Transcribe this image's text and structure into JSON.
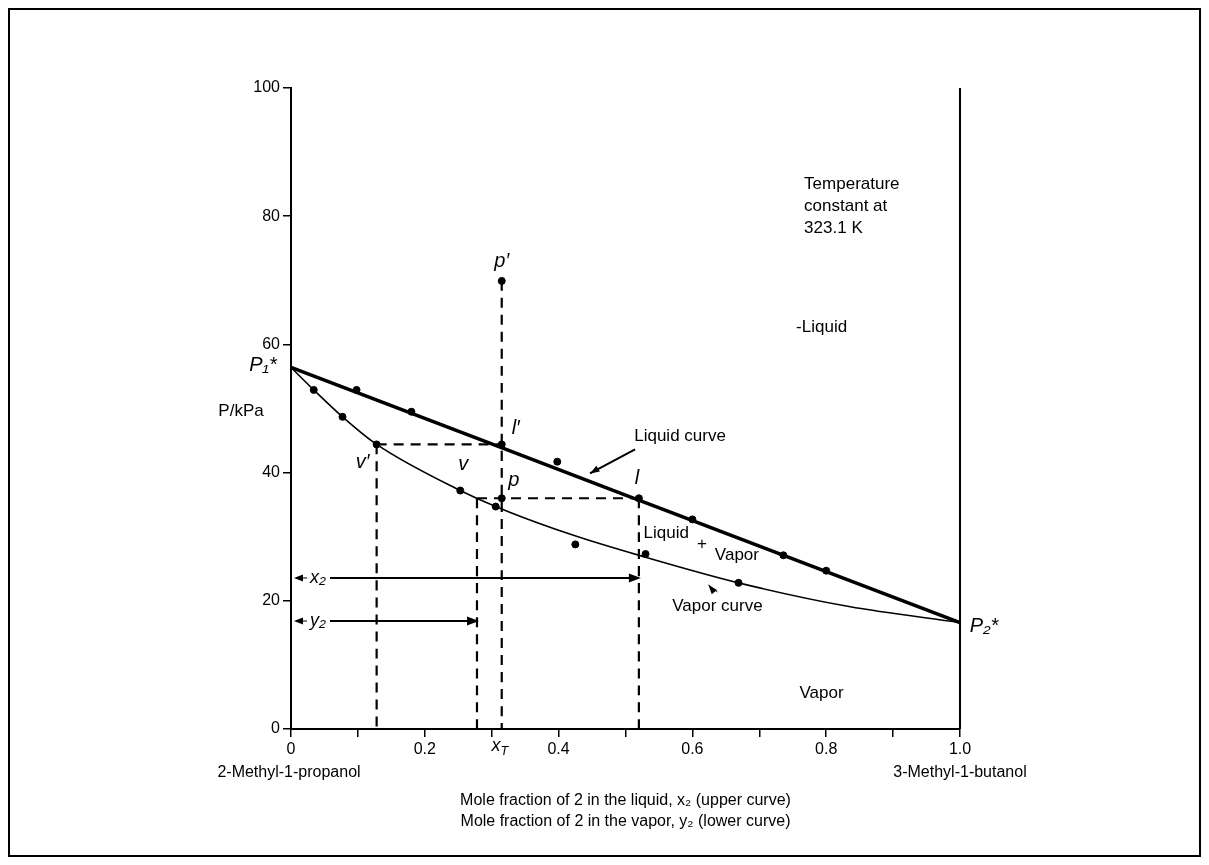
{
  "chart_data": {
    "type": "line",
    "xlabel": "Mole fraction of 2 in the liquid, x₂ (upper curve)\nMole fraction of 2 in the vapor, y₂ (lower curve)",
    "ylabel": "P/kPa",
    "xlim": [
      0,
      1
    ],
    "ylim": [
      0,
      100
    ],
    "xticks": [
      0,
      {
        "value": 0.1,
        "label": null
      },
      0.2,
      {
        "value": 0.3,
        "label": null
      },
      0.4,
      {
        "value": 0.5,
        "label": null
      },
      0.6,
      {
        "value": 0.7,
        "label": null
      },
      0.8,
      {
        "value": 0.9,
        "label": null
      },
      {
        "value": 1,
        "label": "1.0"
      }
    ],
    "yticks": [
      0,
      20,
      40,
      60,
      80,
      100
    ],
    "series": [
      {
        "type": "line",
        "color": "#000000",
        "marker": "none",
        "line_style": "solid",
        "x": [
          0,
          1
        ],
        "values": [
          56.4,
          16.6
        ]
      },
      {
        "type": "line",
        "color": "#000000",
        "marker": "none",
        "line_style": "solid",
        "x": [
          0,
          0.034,
          0.077,
          0.128,
          0.253,
          0.306,
          0.42,
          0.53,
          0.669,
          0.834,
          1
        ],
        "values": [
          56.4,
          52.9,
          48.7,
          44.4,
          37.2,
          34.7,
          30.3,
          26.8,
          22.8,
          19.1,
          16.6
        ]
      },
      {
        "type": "line",
        "color": "#000000",
        "marker": "none",
        "line_style": "dashed",
        "x": [
          0.315,
          0.315
        ],
        "values": [
          69.9,
          0
        ]
      },
      {
        "color": "#000000",
        "marker": "none",
        "line_style": "dashed",
        "x": [
          0.128,
          0.315
        ],
        "values": [
          44.4,
          44.4
        ]
      },
      {
        "color": "#000000",
        "marker": "none",
        "line_style": "dashed",
        "x": [
          0.128,
          0.128
        ],
        "values": [
          44.4,
          0
        ]
      },
      {
        "color": "#000000",
        "marker": "none",
        "line_style": "dashed",
        "x": [
          0.278,
          0.52
        ],
        "values": [
          36,
          36
        ]
      },
      {
        "color": "#000000",
        "marker": "none",
        "line_style": "dashed",
        "x": [
          0.278,
          0.278
        ],
        "values": [
          36,
          0
        ]
      },
      {
        "color": "#000000",
        "marker": "none",
        "line_style": "dashed",
        "x": [
          0.52,
          0.52
        ],
        "values": [
          36,
          0
        ]
      },
      {
        "type": "scatter",
        "color": "#000000",
        "marker": "circle",
        "x": [
          0.034,
          0.077,
          0.098,
          0.128,
          0.18,
          0.253,
          0.306,
          0.315,
          0.315,
          0.315,
          0.398,
          0.425,
          0.52,
          0.53,
          0.6,
          0.669,
          0.736,
          0.8
        ],
        "values": [
          52.9,
          48.7,
          52.9,
          44.4,
          49.5,
          37.2,
          34.7,
          69.9,
          44.4,
          36,
          41.7,
          28.8,
          36,
          27.3,
          32.7,
          22.8,
          27.1,
          24.7
        ]
      }
    ],
    "annotations": [
      "Temperature\nconstant at\n323.1 K",
      "-Liquid",
      "Liquid + Vapor",
      "Vapor",
      "2-Methyl-1-propanol",
      "3-Methyl-1-butanol",
      {
        "text": "Liquid curve",
        "x": 0.447,
        "y": 39.4
      },
      {
        "text": "Vapor curve",
        "x": 0.624,
        "y": 23.1
      },
      {
        "text": "P₁*",
        "x": 0,
        "y": 56.4
      },
      {
        "text": "p′",
        "x": 0.315,
        "y": 69.9
      },
      {
        "text": "l′",
        "x": 0.315,
        "y": 44.4
      },
      {
        "text": "v′",
        "x": 0.128,
        "y": 44.4
      },
      {
        "text": "p",
        "x": 0.315,
        "y": 36
      },
      {
        "text": "l",
        "x": 0.52,
        "y": 36
      },
      {
        "text": "v",
        "x": 0.253,
        "y": 37.2
      },
      {
        "text": "P₂*",
        "x": 1,
        "y": 16.6
      },
      {
        "text": "x$_{T}$",
        "x": 0.315,
        "y": 0
      },
      {
        "text": "x₂",
        "x": 0.52,
        "y": 23.5
      },
      {
        "text": "y₂",
        "x": 0.278,
        "y": 16.8
      }
    ]
  }
}
